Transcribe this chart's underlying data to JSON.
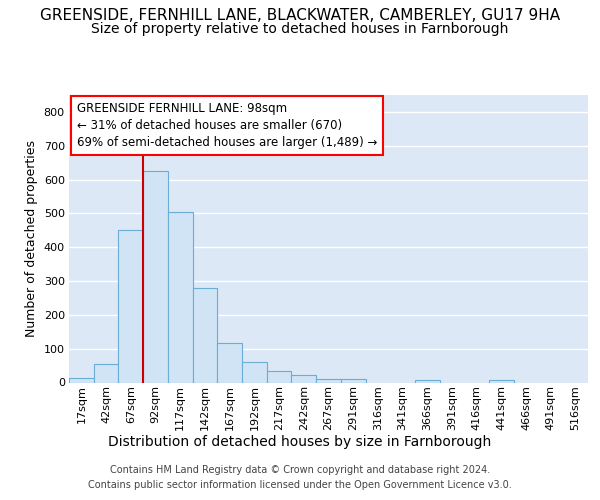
{
  "title": "GREENSIDE, FERNHILL LANE, BLACKWATER, CAMBERLEY, GU17 9HA",
  "subtitle": "Size of property relative to detached houses in Farnborough",
  "xlabel": "Distribution of detached houses by size in Farnborough",
  "ylabel": "Number of detached properties",
  "bar_values": [
    13,
    55,
    450,
    625,
    505,
    280,
    117,
    62,
    35,
    22,
    10,
    10,
    0,
    0,
    8,
    0,
    0,
    7,
    0,
    0,
    0
  ],
  "bar_labels": [
    "17sqm",
    "42sqm",
    "67sqm",
    "92sqm",
    "117sqm",
    "142sqm",
    "167sqm",
    "192sqm",
    "217sqm",
    "242sqm",
    "267sqm",
    "291sqm",
    "316sqm",
    "341sqm",
    "366sqm",
    "391sqm",
    "416sqm",
    "441sqm",
    "466sqm",
    "491sqm",
    "516sqm"
  ],
  "bar_color": "#d0e4f5",
  "bar_edge_color": "#6aadd5",
  "vline_color": "#cc0000",
  "ylim": [
    0,
    850
  ],
  "yticks": [
    0,
    100,
    200,
    300,
    400,
    500,
    600,
    700,
    800
  ],
  "annotation_title": "GREENSIDE FERNHILL LANE: 98sqm",
  "annotation_line1": "← 31% of detached houses are smaller (670)",
  "annotation_line2": "69% of semi-detached houses are larger (1,489) →",
  "footer_line1": "Contains HM Land Registry data © Crown copyright and database right 2024.",
  "footer_line2": "Contains public sector information licensed under the Open Government Licence v3.0.",
  "bg_color": "#dce8f5",
  "grid_color": "#ffffff",
  "title_fontsize": 11,
  "subtitle_fontsize": 10,
  "ylabel_fontsize": 9,
  "xlabel_fontsize": 10,
  "tick_fontsize": 8,
  "annot_fontsize": 8.5,
  "footer_fontsize": 7
}
